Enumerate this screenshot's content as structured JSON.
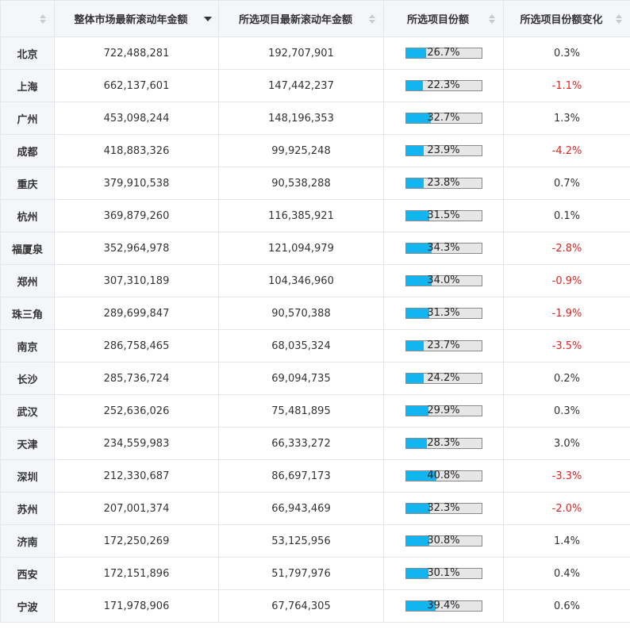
{
  "colors": {
    "header_bg": "#f4f6f9",
    "border": "#e3e6ea",
    "bar_fill": "#12b5f0",
    "bar_track": "#e6e6e6",
    "negative": "#e02424"
  },
  "columns": [
    {
      "label": "",
      "sort": "none",
      "icon": "sort-both-icon"
    },
    {
      "label": "整体市场最新滚动年金额",
      "sort": "desc",
      "icon": "sort-desc-icon"
    },
    {
      "label": "所选项目最新滚动年金额",
      "sort": "none",
      "icon": "sort-both-icon"
    },
    {
      "label": "所选项目份额",
      "sort": "none",
      "icon": "sort-both-icon"
    },
    {
      "label": "所选项目份额变化",
      "sort": "none",
      "icon": "sort-both-icon"
    }
  ],
  "rows": [
    {
      "city": "北京",
      "market": "722,488,281",
      "selected": "192,707,901",
      "share": 26.7,
      "share_label": "26.7%",
      "change": "0.3%"
    },
    {
      "city": "上海",
      "market": "662,137,601",
      "selected": "147,442,237",
      "share": 22.3,
      "share_label": "22.3%",
      "change": "-1.1%"
    },
    {
      "city": "广州",
      "market": "453,098,244",
      "selected": "148,196,353",
      "share": 32.7,
      "share_label": "32.7%",
      "change": "1.3%"
    },
    {
      "city": "成都",
      "market": "418,883,326",
      "selected": "99,925,248",
      "share": 23.9,
      "share_label": "23.9%",
      "change": "-4.2%"
    },
    {
      "city": "重庆",
      "market": "379,910,538",
      "selected": "90,538,288",
      "share": 23.8,
      "share_label": "23.8%",
      "change": "0.7%"
    },
    {
      "city": "杭州",
      "market": "369,879,260",
      "selected": "116,385,921",
      "share": 31.5,
      "share_label": "31.5%",
      "change": "0.1%"
    },
    {
      "city": "福厦泉",
      "market": "352,964,978",
      "selected": "121,094,979",
      "share": 34.3,
      "share_label": "34.3%",
      "change": "-2.8%"
    },
    {
      "city": "郑州",
      "market": "307,310,189",
      "selected": "104,346,960",
      "share": 34.0,
      "share_label": "34.0%",
      "change": "-0.9%"
    },
    {
      "city": "珠三角",
      "market": "289,699,847",
      "selected": "90,570,388",
      "share": 31.3,
      "share_label": "31.3%",
      "change": "-1.9%"
    },
    {
      "city": "南京",
      "market": "286,758,465",
      "selected": "68,035,324",
      "share": 23.7,
      "share_label": "23.7%",
      "change": "-3.5%"
    },
    {
      "city": "长沙",
      "market": "285,736,724",
      "selected": "69,094,735",
      "share": 24.2,
      "share_label": "24.2%",
      "change": "0.2%"
    },
    {
      "city": "武汉",
      "market": "252,636,026",
      "selected": "75,481,895",
      "share": 29.9,
      "share_label": "29.9%",
      "change": "0.3%"
    },
    {
      "city": "天津",
      "market": "234,559,983",
      "selected": "66,333,272",
      "share": 28.3,
      "share_label": "28.3%",
      "change": "3.0%"
    },
    {
      "city": "深圳",
      "market": "212,330,687",
      "selected": "86,697,173",
      "share": 40.8,
      "share_label": "40.8%",
      "change": "-3.3%"
    },
    {
      "city": "苏州",
      "market": "207,001,374",
      "selected": "66,943,469",
      "share": 32.3,
      "share_label": "32.3%",
      "change": "-2.0%"
    },
    {
      "city": "济南",
      "market": "172,250,269",
      "selected": "53,125,956",
      "share": 30.8,
      "share_label": "30.8%",
      "change": "1.4%"
    },
    {
      "city": "西安",
      "market": "172,151,896",
      "selected": "51,797,976",
      "share": 30.1,
      "share_label": "30.1%",
      "change": "0.4%"
    },
    {
      "city": "宁波",
      "market": "171,978,906",
      "selected": "67,764,305",
      "share": 39.4,
      "share_label": "39.4%",
      "change": "0.6%"
    }
  ]
}
